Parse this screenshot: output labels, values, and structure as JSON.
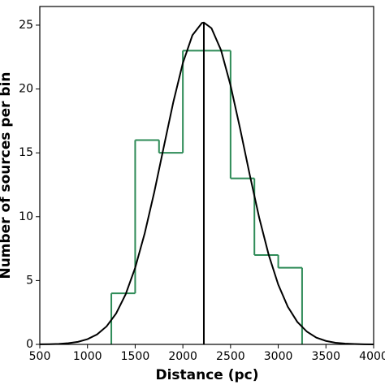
{
  "chart_data": {
    "type": "histogram",
    "xlabel": "Distance (pc)",
    "ylabel": "Number of sources per bin",
    "bins": [
      1250,
      1500,
      1750,
      2000,
      2250,
      2500,
      2750,
      3000,
      3250
    ],
    "counts": [
      4,
      16,
      15,
      23,
      23,
      13,
      7,
      6
    ],
    "color": "#2e8b57",
    "curve": {
      "color": "#000000",
      "x": [
        500,
        600,
        700,
        800,
        900,
        1000,
        1100,
        1200,
        1300,
        1400,
        1500,
        1600,
        1700,
        1800,
        1900,
        2000,
        2100,
        2200,
        2220,
        2300,
        2400,
        2500,
        2600,
        2700,
        2800,
        2900,
        3000,
        3100,
        3200,
        3300,
        3400,
        3500,
        3600,
        3700,
        3800,
        3900,
        4000
      ],
      "values": [
        0.007,
        0.018,
        0.042,
        0.095,
        0.2,
        0.41,
        0.78,
        1.41,
        2.42,
        3.92,
        6.0,
        8.7,
        11.92,
        15.47,
        18.98,
        22.04,
        24.21,
        25.17,
        25.2,
        24.76,
        23.04,
        20.28,
        16.9,
        13.32,
        9.93,
        7.01,
        4.68,
        2.95,
        1.76,
        1.0,
        0.53,
        0.27,
        0.13,
        0.06,
        0.03,
        0.01,
        0.0
      ]
    },
    "vline_x": 2220,
    "xlim": [
      500,
      4000
    ],
    "xticks": [
      500,
      1000,
      1500,
      2000,
      2500,
      3000,
      3500,
      4000
    ],
    "ylim": [
      0,
      26.46
    ],
    "yticks": [
      0,
      5,
      10,
      15,
      20,
      25
    ]
  }
}
